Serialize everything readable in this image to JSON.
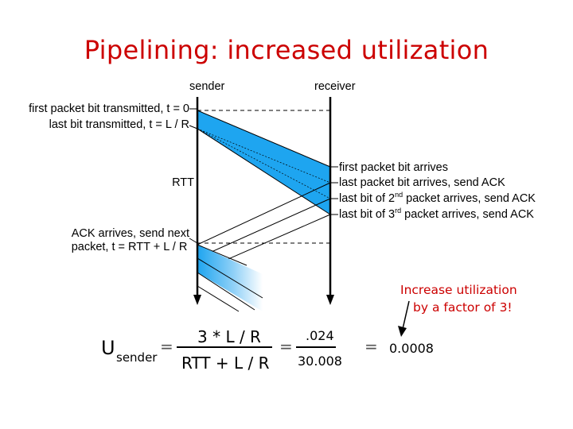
{
  "title": "Pipelining: increased utilization",
  "sender_label": "sender",
  "receiver_label": "receiver",
  "sender_events": {
    "first_bit": "first packet bit transmitted, t = 0",
    "last_bit": "last bit transmitted, t = L / R",
    "rtt": "RTT",
    "ack_line1": "ACK arrives, send next",
    "ack_line2": "packet, t = RTT + L / R"
  },
  "receiver_events": {
    "first_arrives": "first packet bit arrives",
    "last_arrives": "last packet bit arrives, send ACK",
    "second_pre": "last bit of 2",
    "second_sup": "nd",
    "second_post": " packet arrives, send ACK",
    "third_pre": "last bit of 3",
    "third_sup": "rd",
    "third_post": " packet arrives, send ACK"
  },
  "note": {
    "line1": "Increase utilization",
    "line2": "by a factor of 3!"
  },
  "formula": {
    "u": "U",
    "u_sub": "sender",
    "eq": "=",
    "numerator": "3 * L / R",
    "denominator": "RTT + L / R",
    "num2": ".024",
    "den2": "30.008",
    "result": "0.0008"
  },
  "colors": {
    "title": "#cc0000",
    "packet_band": "#1ea5f0",
    "note": "#cc0000"
  }
}
